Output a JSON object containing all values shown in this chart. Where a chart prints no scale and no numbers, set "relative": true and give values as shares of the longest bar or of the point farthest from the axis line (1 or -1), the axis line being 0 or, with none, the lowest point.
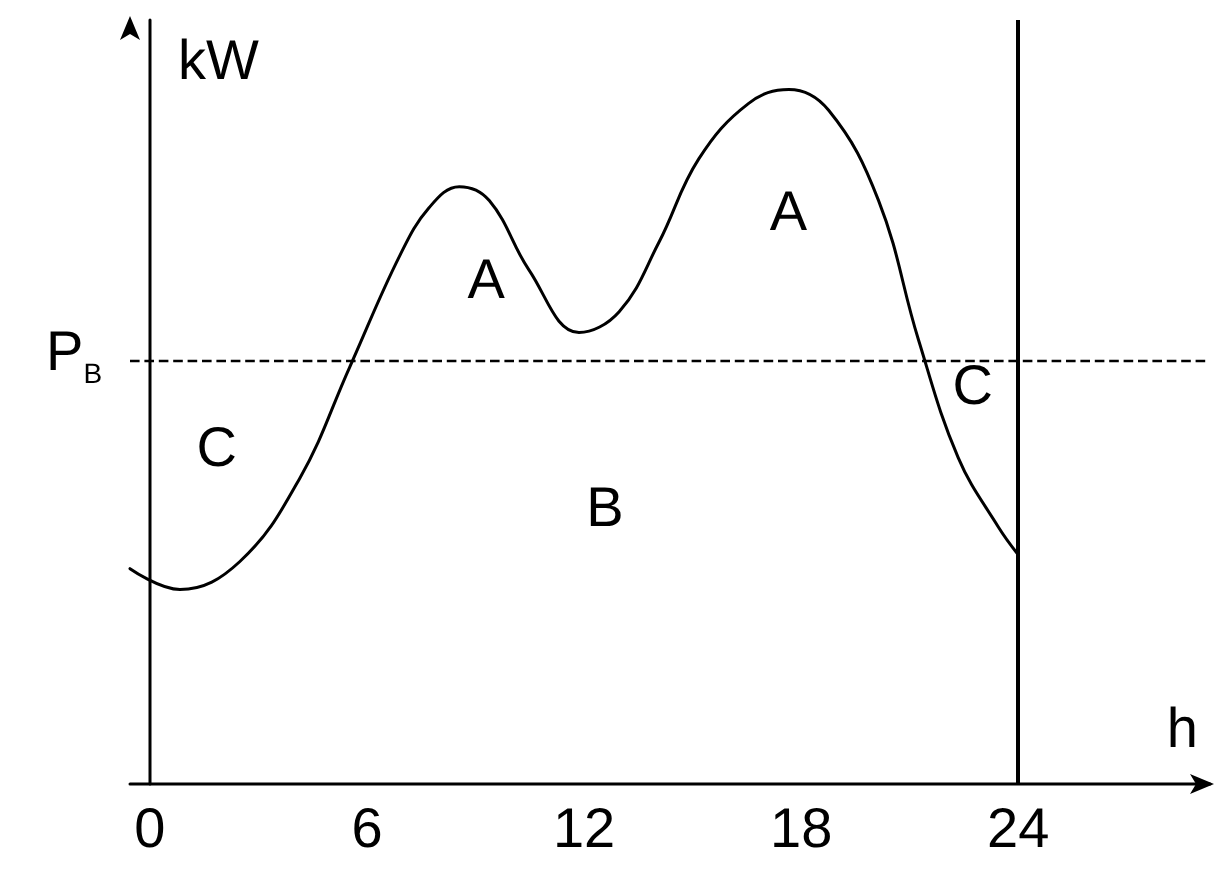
{
  "chart_data": {
    "type": "line",
    "relative": true,
    "xlabel": "h",
    "ylabel": "kW",
    "xlim": [
      -0.55,
      29.3
    ],
    "xticks": [
      0,
      6,
      12,
      18,
      24
    ],
    "x": [
      -0.55,
      0.83,
      2.48,
      4.14,
      5.52,
      6.9,
      7.72,
      8.55,
      9.38,
      10.48,
      11.86,
      12.97,
      14.07,
      15.17,
      16.55,
      17.66,
      18.76,
      20.14,
      21.24,
      22.34,
      23.45,
      24
    ],
    "series": [
      {
        "color": "#000000",
        "values": [
          0.31,
          0.28,
          0.32,
          0.44,
          0.6,
          0.76,
          0.83,
          0.86,
          0.84,
          0.74,
          0.65,
          0.68,
          0.78,
          0.9,
          0.98,
          1,
          0.97,
          0.84,
          0.64,
          0.47,
          0.37,
          0.33
        ]
      }
    ],
    "ref_lines": [
      {
        "axis": "y",
        "value": 0.61,
        "label": "P$_{B}$",
        "line_style": "dashed",
        "color": "#000000"
      },
      {
        "axis": "x",
        "value": 24,
        "label": null,
        "line_style": "solid",
        "color": "#000000"
      }
    ],
    "annotations": [
      "A",
      "A",
      "C",
      "B",
      "C"
    ],
    "grid": false,
    "marker": "none",
    "line_style": "solid"
  }
}
